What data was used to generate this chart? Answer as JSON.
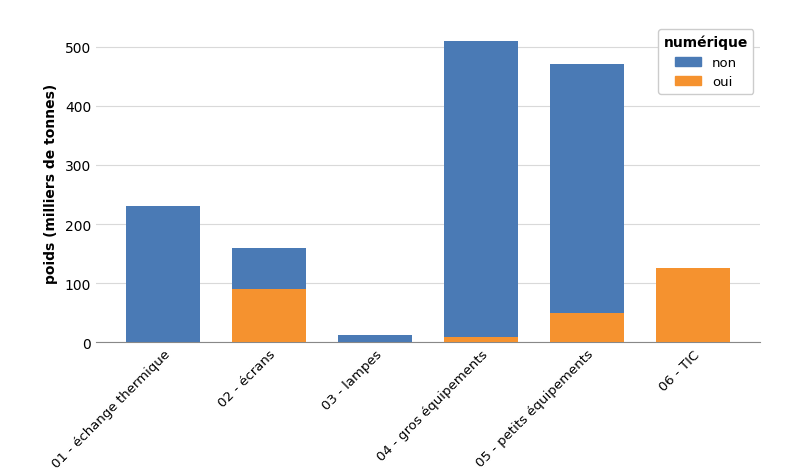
{
  "categories": [
    "01 - échange thermique",
    "02 - écrans",
    "03 - lampes",
    "04 - gros équipements",
    "05 - petits équipements",
    "06 - TIC"
  ],
  "non_values": [
    230,
    70,
    12,
    500,
    420,
    0
  ],
  "oui_values": [
    0,
    90,
    0,
    10,
    50,
    125
  ],
  "color_non": "#4a7ab5",
  "color_oui": "#f5922f",
  "ylabel": "poids (milliers de tonnes)",
  "ylim": [
    0,
    540
  ],
  "yticks": [
    0,
    100,
    200,
    300,
    400,
    500
  ],
  "legend_title": "numérique",
  "legend_non": "non",
  "legend_oui": "oui",
  "bar_width": 0.7,
  "figsize": [
    8.0,
    4.77
  ],
  "dpi": 100,
  "background_color": "#ffffff",
  "grid_color": "#d9d9d9"
}
